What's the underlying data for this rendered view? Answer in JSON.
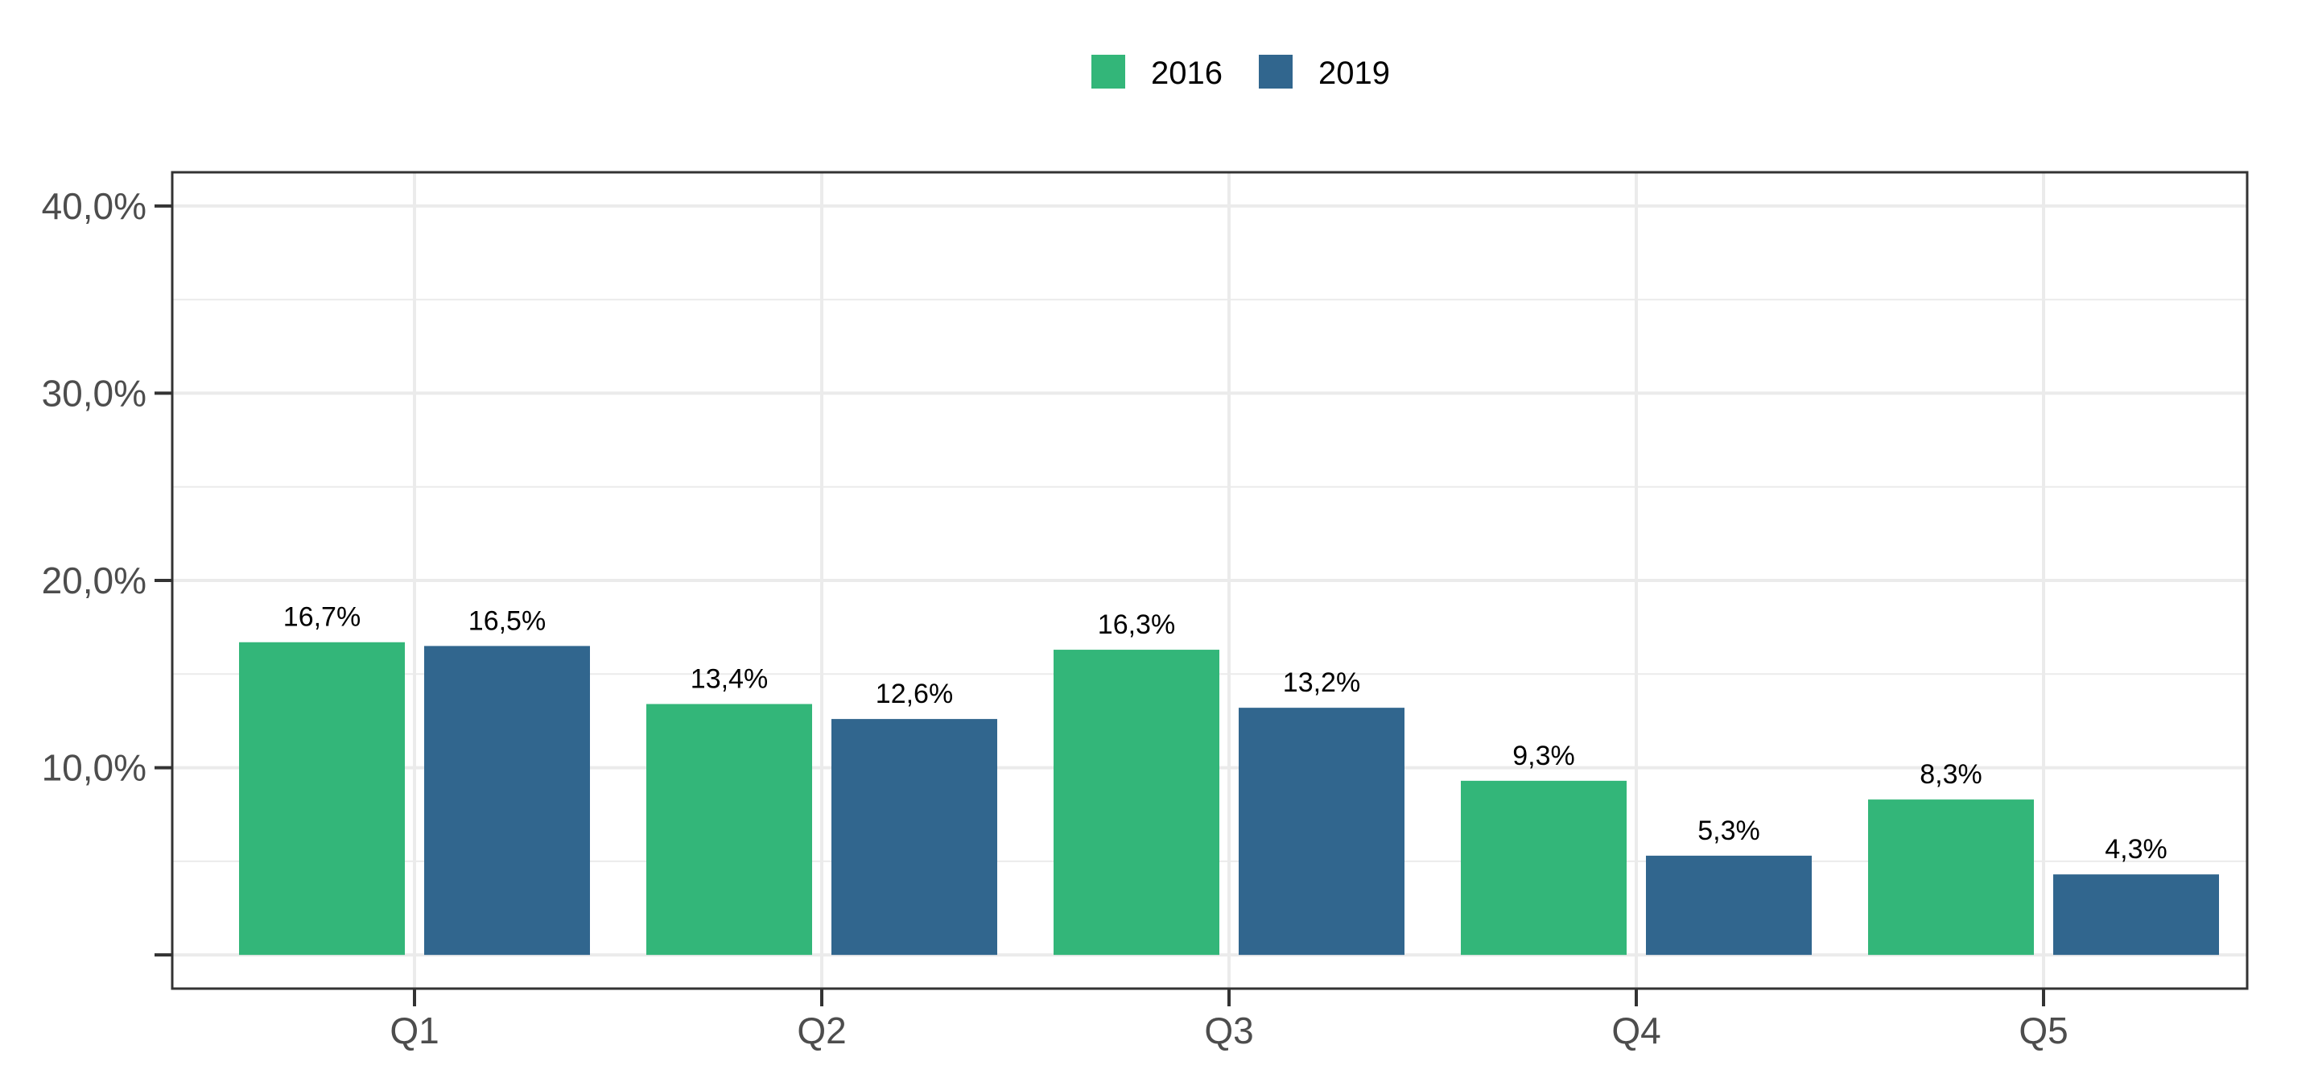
{
  "chart_data": {
    "type": "bar",
    "categories": [
      "Q1",
      "Q2",
      "Q3",
      "Q4",
      "Q5"
    ],
    "series": [
      {
        "name": "2016",
        "color": "#33b679",
        "values": [
          16.7,
          13.4,
          16.3,
          9.3,
          8.3
        ],
        "labels": [
          "16,7%",
          "13,4%",
          "16,3%",
          "9,3%",
          "8,3%"
        ]
      },
      {
        "name": "2019",
        "color": "#31668e",
        "values": [
          16.5,
          12.6,
          13.2,
          5.3,
          4.3
        ],
        "labels": [
          "16,5%",
          "12,6%",
          "13,2%",
          "5,3%",
          "4,3%"
        ]
      }
    ],
    "y_ticks": [
      10,
      20,
      30,
      40
    ],
    "y_tick_labels": [
      "10,0%",
      "20,0%",
      "30,0%",
      "40,0%"
    ],
    "ylim": [
      -1.8,
      41.8
    ],
    "title": "",
    "xlabel": "",
    "ylabel": "",
    "grid": true,
    "legend_position": "top"
  }
}
